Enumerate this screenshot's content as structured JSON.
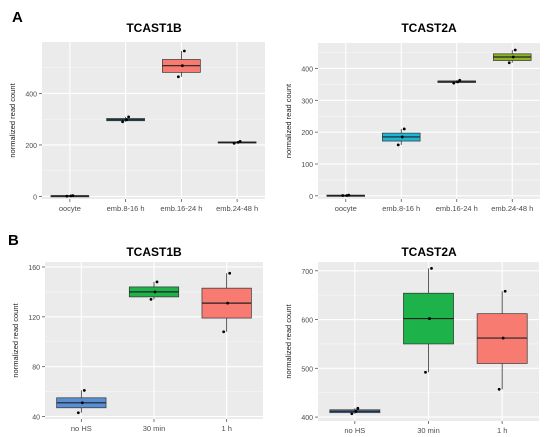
{
  "panels": {
    "a_label": "A",
    "b_label": "B"
  },
  "chart_data": [
    {
      "type": "box",
      "title": "TCAST1B",
      "xlabel": "",
      "ylabel": "normalized read count",
      "ylim": [
        -10,
        600
      ],
      "yticks": [
        0,
        200,
        400
      ],
      "categories": [
        "oocyte",
        "emb.8-16 h",
        "emb.16-24 h",
        "emb.24-48 h"
      ],
      "colors": [
        "#7f7f7f",
        "#1fb3b8",
        "#f87b72",
        "#7a5a3a"
      ],
      "boxes": [
        {
          "category": "oocyte",
          "min": 1,
          "q1": 1,
          "median": 2,
          "q3": 3,
          "max": 3,
          "points": [
            1,
            2,
            3
          ]
        },
        {
          "category": "emb.8-16 h",
          "min": 290,
          "q1": 294,
          "median": 298,
          "q3": 303,
          "max": 309,
          "points": [
            290,
            298,
            309
          ]
        },
        {
          "category": "emb.16-24 h",
          "min": 465,
          "q1": 482,
          "median": 508,
          "q3": 532,
          "max": 565,
          "points": [
            465,
            508,
            565
          ]
        },
        {
          "category": "emb.24-48 h",
          "min": 206,
          "q1": 208,
          "median": 210,
          "q3": 212,
          "max": 214,
          "points": [
            206,
            210,
            214
          ]
        }
      ]
    },
    {
      "type": "box",
      "title": "TCAST2A",
      "xlabel": "",
      "ylabel": "normalized read count",
      "ylim": [
        -10,
        480
      ],
      "yticks": [
        0,
        100,
        200,
        300,
        400
      ],
      "categories": [
        "oocyte",
        "emb.8-16 h",
        "emb.16-24 h",
        "emb.24-48 h"
      ],
      "colors": [
        "#7f7f7f",
        "#20b5d4",
        "#7a5a3a",
        "#8db324"
      ],
      "boxes": [
        {
          "category": "oocyte",
          "min": 1,
          "q1": 1,
          "median": 1,
          "q3": 2,
          "max": 2,
          "points": [
            1,
            1,
            2
          ]
        },
        {
          "category": "emb.8-16 h",
          "min": 160,
          "q1": 172,
          "median": 185,
          "q3": 197,
          "max": 210,
          "points": [
            160,
            185,
            210
          ]
        },
        {
          "category": "emb.16-24 h",
          "min": 354,
          "q1": 356,
          "median": 358,
          "q3": 361,
          "max": 363,
          "points": [
            354,
            358,
            363
          ]
        },
        {
          "category": "emb.24-48 h",
          "min": 418,
          "q1": 425,
          "median": 436,
          "q3": 446,
          "max": 458,
          "points": [
            418,
            436,
            458
          ]
        }
      ]
    },
    {
      "type": "box",
      "title": "TCAST1B",
      "xlabel": "",
      "ylabel": "normalized read count",
      "ylim": [
        38,
        164
      ],
      "yticks": [
        40,
        80,
        120,
        160
      ],
      "categories": [
        "no HS",
        "30 min",
        "1 h"
      ],
      "colors": [
        "#5b8fd4",
        "#1db34a",
        "#f87b72"
      ],
      "boxes": [
        {
          "category": "no HS",
          "min": 43,
          "q1": 47,
          "median": 51,
          "q3": 55,
          "max": 61,
          "points": [
            43,
            51,
            61
          ]
        },
        {
          "category": "30 min",
          "min": 134,
          "q1": 136,
          "median": 140,
          "q3": 144,
          "max": 148,
          "points": [
            134,
            140,
            148
          ]
        },
        {
          "category": "1 h",
          "min": 108,
          "q1": 119,
          "median": 131,
          "q3": 143,
          "max": 155,
          "points": [
            108,
            131,
            155
          ]
        }
      ]
    },
    {
      "type": "box",
      "title": "TCAST2A",
      "xlabel": "",
      "ylabel": "normalized read count",
      "ylim": [
        392,
        718
      ],
      "yticks": [
        400,
        500,
        600,
        700
      ],
      "categories": [
        "no HS",
        "30 min",
        "1 h"
      ],
      "colors": [
        "#5b8fd4",
        "#1db34a",
        "#f87b72"
      ],
      "boxes": [
        {
          "category": "no HS",
          "min": 407,
          "q1": 409,
          "median": 412,
          "q3": 415,
          "max": 418,
          "points": [
            407,
            412,
            418
          ]
        },
        {
          "category": "30 min",
          "min": 492,
          "q1": 550,
          "median": 602,
          "q3": 654,
          "max": 705,
          "points": [
            492,
            602,
            705
          ]
        },
        {
          "category": "1 h",
          "min": 457,
          "q1": 510,
          "median": 562,
          "q3": 612,
          "max": 658,
          "points": [
            457,
            562,
            658
          ]
        }
      ]
    }
  ]
}
